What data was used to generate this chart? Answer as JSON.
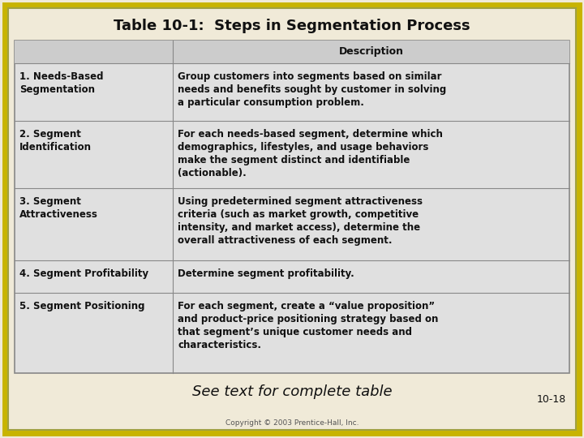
{
  "title": "Table 10-1:  Steps in Segmentation Process",
  "title_fontsize": 13,
  "background_color": "#f0ead8",
  "outer_border_color1": "#c8b400",
  "outer_border_color2": "#a0a040",
  "table_bg_color": "#e0e0e0",
  "table_border_color": "#888888",
  "header_text": "Description",
  "footer_italic": "See text for complete table",
  "footer_page": "10-18",
  "copyright": "Copyright © 2003 Prentice-Hall, Inc.",
  "white_bg": "#f8f8f0",
  "rows": [
    {
      "step": "1. Needs-Based\nSegmentation",
      "description": "Group customers into segments based on similar\nneeds and benefits sought by customer in solving\na particular consumption problem."
    },
    {
      "step": "2. Segment\nIdentification",
      "description": "For each needs-based segment, determine which\ndemographics, lifestyles, and usage behaviors\nmake the segment distinct and identifiable\n(actionable)."
    },
    {
      "step": "3. Segment\nAttractiveness",
      "description": "Using predetermined segment attractiveness\ncriteria (such as market growth, competitive\nintensity, and market access), determine the\noverall attractiveness of each segment."
    },
    {
      "step": "4. Segment Profitability",
      "description": "Determine segment profitability."
    },
    {
      "step": "5. Segment Positioning",
      "description": "For each segment, create a “value proposition”\nand product-price positioning strategy based on\nthat segment’s unique customer needs and\ncharacteristics."
    }
  ]
}
